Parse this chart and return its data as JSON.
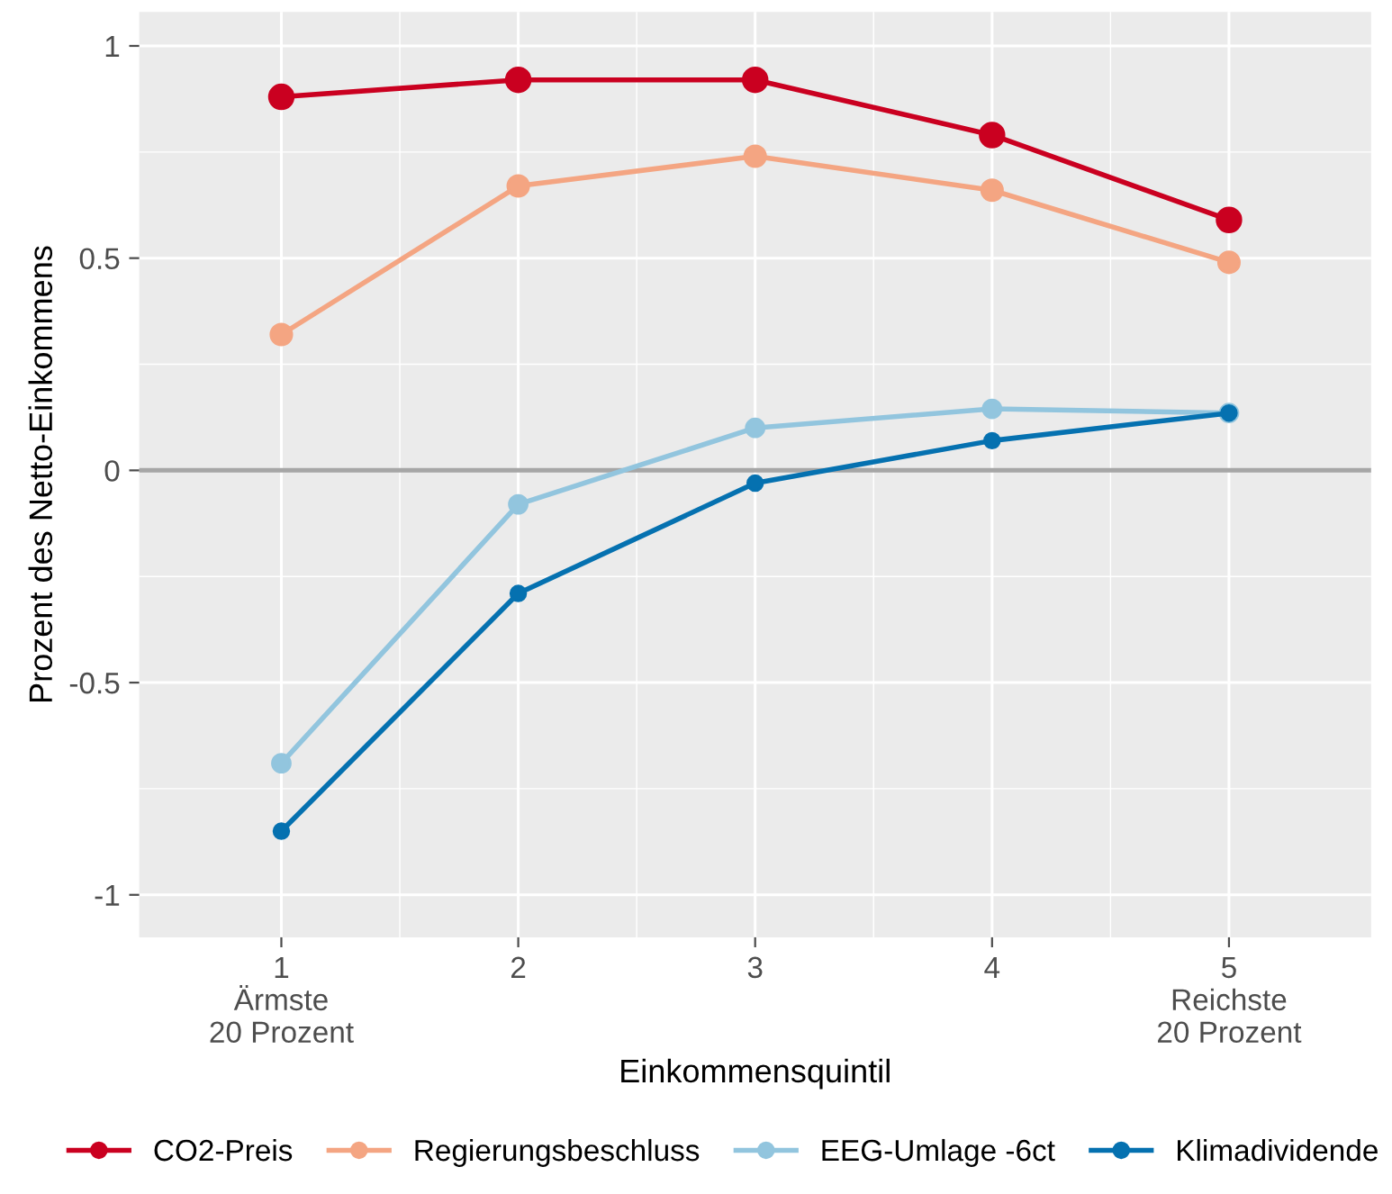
{
  "chart_data": {
    "type": "line",
    "xlabel": "Einkommensquintil",
    "ylabel": "Prozent des Netto-Einkommens",
    "x": [
      1,
      2,
      3,
      4,
      5
    ],
    "xlim": [
      0.4,
      5.6
    ],
    "xticks": [
      {
        "value": 1,
        "label": "1\nÄrmste\n20 Prozent"
      },
      2,
      3,
      4,
      {
        "value": 5,
        "label": "5\nReichste\n20 Prozent"
      }
    ],
    "ylim": [
      -1.1,
      1.08
    ],
    "yticks": [
      -1,
      -0.5,
      0,
      0.5,
      1
    ],
    "grid": true,
    "legend": "bottom",
    "marker": "circle",
    "line_style": "solid",
    "ref_lines": [
      {
        "axis": "y",
        "value": 0,
        "color": "#a6a6a6"
      }
    ],
    "series": [
      {
        "name": "CO2-Preis",
        "color": "#ca0020",
        "values": [
          0.88,
          0.92,
          0.92,
          0.79,
          0.59
        ]
      },
      {
        "name": "Regierungsbeschluss",
        "color": "#f4a582",
        "values": [
          0.32,
          0.67,
          0.74,
          0.66,
          0.49
        ]
      },
      {
        "name": "EEG-Umlage -6ct",
        "color": "#92c5de",
        "values": [
          -0.69,
          -0.08,
          0.1,
          0.145,
          0.135
        ]
      },
      {
        "name": "Klimadividende",
        "color": "#0571b0",
        "values": [
          -0.85,
          -0.29,
          -0.03,
          0.07,
          0.135
        ]
      }
    ]
  }
}
